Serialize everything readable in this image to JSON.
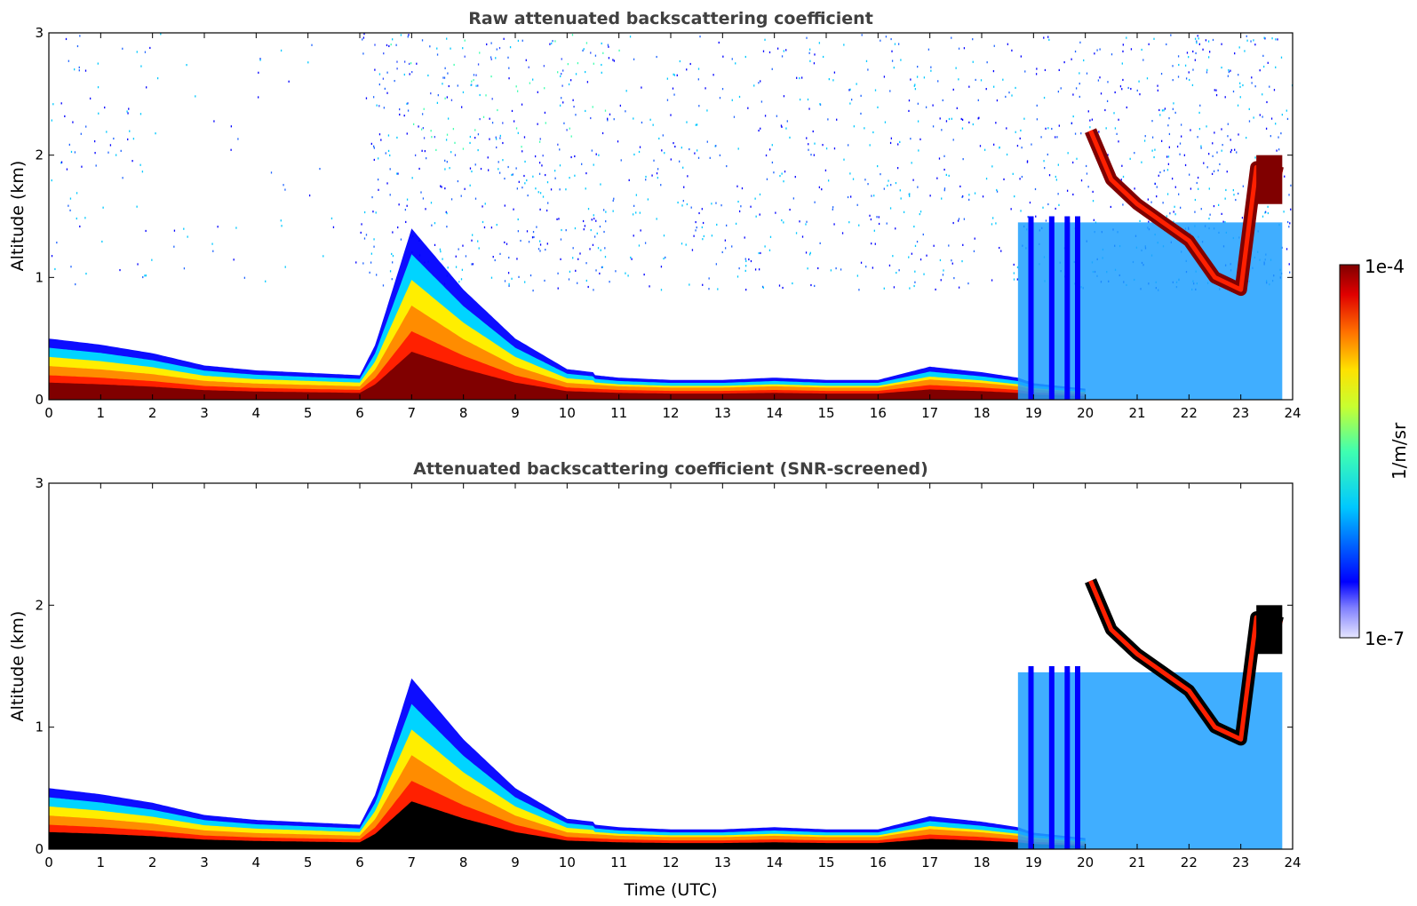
{
  "chart_data": [
    {
      "type": "heatmap",
      "title": "Raw attenuated backscattering coefficient",
      "xlabel": "",
      "ylabel": "Altitude (km)",
      "xlim": [
        0,
        24
      ],
      "ylim": [
        0,
        3
      ],
      "x_ticks": [
        "0",
        "1",
        "2",
        "3",
        "4",
        "5",
        "6",
        "7",
        "8",
        "9",
        "10",
        "11",
        "12",
        "13",
        "14",
        "15",
        "16",
        "17",
        "18",
        "19",
        "20",
        "21",
        "22",
        "23",
        "24"
      ],
      "y_ticks": [
        "0",
        "1",
        "2",
        "3"
      ],
      "boundary_layer_top_km": {
        "x": [
          0,
          1,
          2,
          3,
          4,
          5,
          6,
          6.3,
          7,
          8,
          9,
          10,
          11,
          12,
          13,
          14,
          15,
          16,
          17,
          18,
          18.7,
          19,
          20
        ],
        "y": [
          0.5,
          0.45,
          0.38,
          0.28,
          0.24,
          0.22,
          0.2,
          0.45,
          1.4,
          0.9,
          0.5,
          0.25,
          0.2,
          0.18,
          0.18,
          0.2,
          0.18,
          0.18,
          0.3,
          0.25,
          0.2,
          0.15,
          0.1
        ]
      },
      "cloud_layer_km": {
        "x": [
          20.1,
          20.5,
          21,
          21.5,
          22,
          22.5,
          23,
          23.3,
          23.8
        ],
        "y": [
          2.2,
          1.8,
          1.6,
          1.45,
          1.3,
          1.0,
          0.9,
          1.9,
          1.85
        ]
      },
      "noise_region_top_km": 3,
      "note_values_colorscale": "log"
    },
    {
      "type": "heatmap",
      "title": "Attenuated backscattering coefficient (SNR-screened)",
      "xlabel": "Time (UTC)",
      "ylabel": "Altitude (km)",
      "xlim": [
        0,
        24
      ],
      "ylim": [
        0,
        3
      ],
      "x_ticks": [
        "0",
        "1",
        "2",
        "3",
        "4",
        "5",
        "6",
        "7",
        "8",
        "9",
        "10",
        "11",
        "12",
        "13",
        "14",
        "15",
        "16",
        "17",
        "18",
        "19",
        "20",
        "21",
        "22",
        "23",
        "24"
      ],
      "y_ticks": [
        "0",
        "1",
        "2",
        "3"
      ],
      "boundary_layer_top_km": {
        "x": [
          0,
          1,
          2,
          3,
          4,
          5,
          6,
          6.3,
          7,
          8,
          9,
          10,
          11,
          12,
          13,
          14,
          15,
          16,
          17,
          18,
          18.7,
          19,
          20
        ],
        "y": [
          0.5,
          0.45,
          0.38,
          0.28,
          0.24,
          0.22,
          0.2,
          0.45,
          1.4,
          0.9,
          0.5,
          0.25,
          0.2,
          0.18,
          0.18,
          0.2,
          0.18,
          0.18,
          0.3,
          0.25,
          0.2,
          0.15,
          0.1
        ]
      },
      "cloud_layer_km": {
        "x": [
          20.1,
          20.5,
          21,
          21.5,
          22,
          22.5,
          23,
          23.3,
          23.8
        ],
        "y": [
          2.2,
          1.8,
          1.6,
          1.45,
          1.3,
          1.0,
          0.9,
          1.9,
          1.85
        ]
      }
    }
  ],
  "colorbar": {
    "label": "1/m/sr",
    "max_label": "1e-4",
    "min_label": "1e-7",
    "scale": "log",
    "range": [
      1e-07,
      0.0001
    ],
    "colormap": "jet"
  },
  "colors": {
    "dark_red": "#800000",
    "red": "#ff2000",
    "orange": "#ff8c00",
    "yellow": "#ffee00",
    "green": "#7fff7f",
    "cyan": "#00d4ff",
    "sky": "#1ea0ff",
    "blue": "#0000ff",
    "pale_blue": "#dcdcff",
    "black": "#000000"
  }
}
